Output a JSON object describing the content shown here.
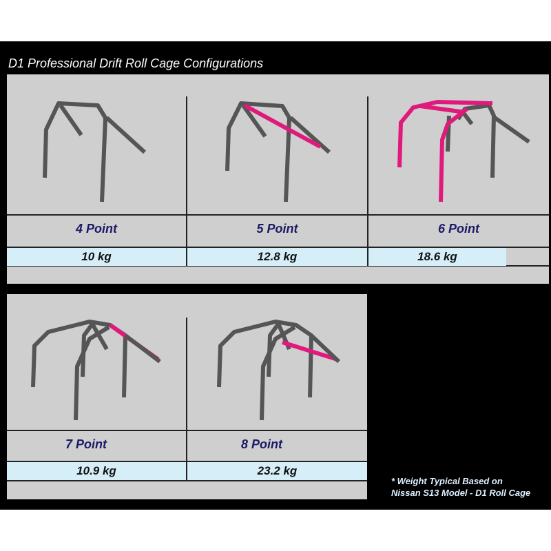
{
  "title": "D1 Professional Drift Roll Cage Configurations",
  "configurations": [
    {
      "label": "4 Point",
      "weight": "10 kg"
    },
    {
      "label": "5 Point",
      "weight": "12.8 kg"
    },
    {
      "label": "6 Point",
      "weight": "18.6 kg"
    },
    {
      "label": "7 Point",
      "weight": "10.9 kg"
    },
    {
      "label": "8 Point",
      "weight": "23.2 kg"
    }
  ],
  "note": {
    "line1": "* Weight Typical Based on",
    "line2": "Nissan S13 Model - D1 Roll Cage"
  },
  "colors": {
    "tube": "#555555",
    "highlight": "#e0197d",
    "label": "#1c1a66",
    "weight_bg": "#d6eef8",
    "panel": "#cfcfcf"
  }
}
